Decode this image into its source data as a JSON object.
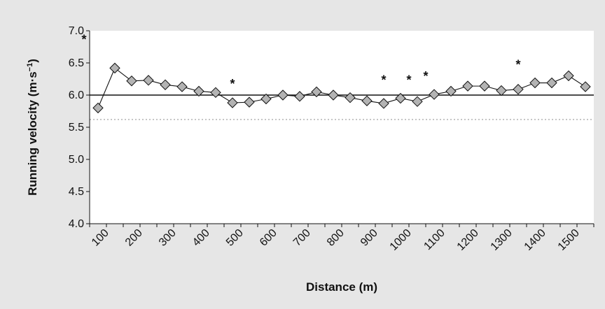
{
  "chart_data": {
    "type": "line",
    "ylabel": "Running velocity (m·s",
    "ylabel_sup": "−1",
    "ylabel_close": ")",
    "xlabel": "Distance (m)",
    "ylim": [
      4.0,
      7.0
    ],
    "yticks": [
      "4.0",
      "4.5",
      "5.0",
      "5.5",
      "6.0",
      "6.5",
      "7.0"
    ],
    "xticks": [
      "100",
      "200",
      "300",
      "400",
      "500",
      "600",
      "700",
      "800",
      "900",
      "1000",
      "1100",
      "1200",
      "1300",
      "1400",
      "1500"
    ],
    "x": [
      75,
      125,
      175,
      225,
      275,
      325,
      375,
      425,
      475,
      525,
      575,
      625,
      675,
      725,
      775,
      825,
      875,
      925,
      975,
      1025,
      1075,
      1125,
      1175,
      1225,
      1275,
      1325,
      1375,
      1425,
      1475,
      1525
    ],
    "series": [
      {
        "values": [
          5.8,
          6.42,
          6.22,
          6.23,
          6.16,
          6.13,
          6.06,
          6.04,
          5.88,
          5.89,
          5.94,
          6.0,
          5.98,
          6.05,
          6.0,
          5.96,
          5.91,
          5.87,
          5.95,
          5.9,
          6.01,
          6.06,
          6.14,
          6.14,
          6.07,
          6.09,
          6.19,
          6.19,
          6.3,
          6.13
        ],
        "marker": "diamond",
        "color": "#b3b3b3"
      }
    ],
    "reference_lines": [
      {
        "y": 6.0,
        "style": "solid",
        "color": "#111111"
      },
      {
        "y": 5.62,
        "style": "dotted",
        "color": "#9a9a9a"
      }
    ],
    "annotations": [
      {
        "text": "*",
        "x": 75
      },
      {
        "text": "*",
        "x": 475
      },
      {
        "text": "*",
        "x": 925
      },
      {
        "text": "*",
        "x": 1000
      },
      {
        "text": "*",
        "x": 1050
      },
      {
        "text": "*",
        "x": 1325
      }
    ],
    "grid": false,
    "legend": "none",
    "background_color": "#e6e6e6"
  }
}
